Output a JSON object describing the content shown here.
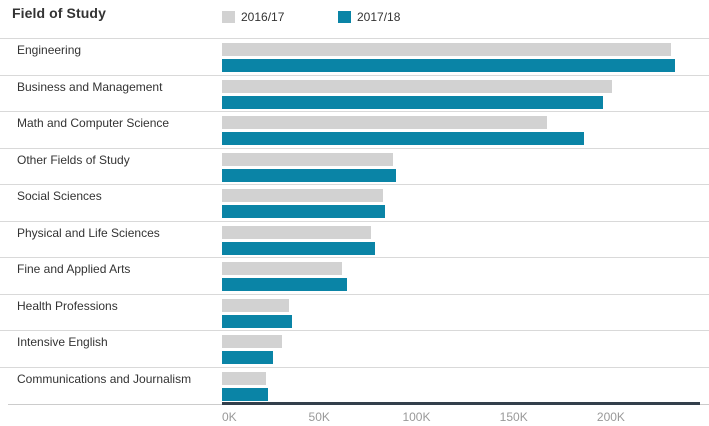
{
  "header": {
    "title": "Field of Study"
  },
  "legend": [
    {
      "label": "2016/17",
      "color": "#d2d2d2"
    },
    {
      "label": "2017/18",
      "color": "#0a84a6"
    }
  ],
  "colors": {
    "bar_2016_17": "#d2d2d2",
    "bar_2017_18": "#0a84a6",
    "row_separator": "#d9d9d9",
    "axis_line": "#333f4b",
    "tick_text": "#999999",
    "category_text": "#333333",
    "title_text": "#333333"
  },
  "chart_data": {
    "type": "bar",
    "orientation": "horizontal",
    "title": "Field of Study",
    "xlabel": "",
    "ylabel": "",
    "unit": "thousands of students",
    "categories": [
      "Engineering",
      "Business and Management",
      "Math and Computer Science",
      "Other Fields of Study",
      "Social Sciences",
      "Physical and Life Sciences",
      "Fine and Applied Arts",
      "Health Professions",
      "Intensive English",
      "Communications and Journalism"
    ],
    "series": [
      {
        "name": "2016/17",
        "color": "#d2d2d2",
        "values": [
          230.7,
          200.3,
          167.2,
          87.7,
          83.0,
          76.8,
          61.5,
          34.5,
          30.7,
          22.6
        ]
      },
      {
        "name": "2017/18",
        "color": "#0a84a6",
        "values": [
          232.7,
          196.1,
          186.1,
          89.3,
          84.0,
          78.8,
          64.1,
          35.8,
          26.1,
          23.4
        ]
      }
    ],
    "x_ticks": [
      {
        "label": "0K",
        "value": 0
      },
      {
        "label": "50K",
        "value": 50
      },
      {
        "label": "100K",
        "value": 100
      },
      {
        "label": "150K",
        "value": 150
      },
      {
        "label": "200K",
        "value": 200
      }
    ],
    "xlim": [
      0,
      245.8
    ],
    "grid": false,
    "legend_position": "top"
  }
}
